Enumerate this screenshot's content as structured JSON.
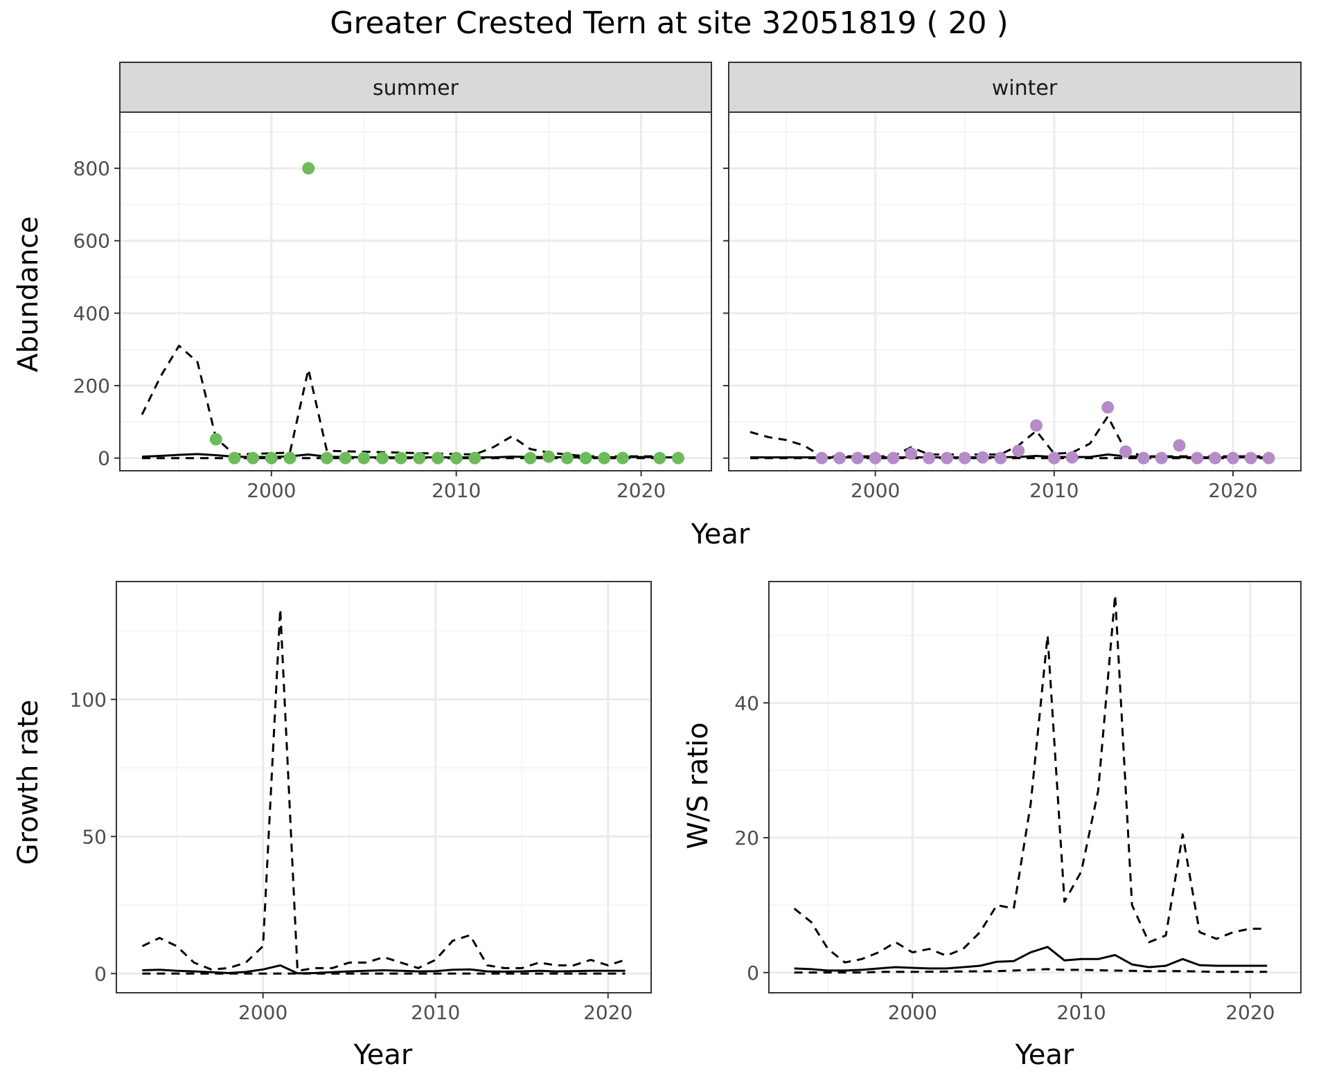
{
  "title": "Greater Crested Tern at site 32051819 ( 20 )",
  "colors": {
    "summer_points": "#6dbb5a",
    "winter_points": "#b58cc8",
    "line": "#000000",
    "grid": "#ebebeb",
    "strip_bg": "#d9d9d9"
  },
  "chart_data": [
    {
      "type": "scatter",
      "panel": "summer",
      "strip_label": "summer",
      "xlabel": "Year",
      "ylabel": "Abundance",
      "xlim": [
        1991.8,
        2023.8
      ],
      "ylim": [
        -35,
        955
      ],
      "x_ticks": [
        2000,
        2010,
        2020
      ],
      "y_ticks": [
        0,
        200,
        400,
        600,
        800
      ],
      "point_color": "#6dbb5a",
      "points": {
        "x": [
          1997,
          1998,
          1999,
          2000,
          2001,
          2002,
          2003,
          2004,
          2005,
          2006,
          2007,
          2008,
          2009,
          2010,
          2011,
          2014,
          2015,
          2016,
          2017,
          2018,
          2019,
          2021,
          2022
        ],
        "y": [
          52,
          0,
          0,
          0,
          0,
          800,
          0,
          0,
          0,
          0,
          0,
          0,
          0,
          0,
          0,
          0,
          4,
          0,
          0,
          0,
          0,
          0,
          0
        ]
      },
      "series": [
        {
          "style": "solid",
          "x": [
            1993,
            1994,
            1995,
            1996,
            1997,
            1998,
            1999,
            2000,
            2001,
            2002,
            2003,
            2004,
            2005,
            2006,
            2007,
            2008,
            2009,
            2010,
            2011,
            2012,
            2013,
            2014,
            2015,
            2016,
            2017,
            2018,
            2019,
            2020,
            2021,
            2022
          ],
          "y": [
            4,
            6,
            9,
            11,
            8,
            4,
            3,
            3,
            5,
            10,
            4,
            3,
            2,
            2,
            2,
            2,
            2,
            2,
            2,
            2,
            4,
            3,
            3,
            2,
            2,
            2,
            3,
            3,
            2,
            2
          ]
        },
        {
          "style": "dashed",
          "x": [
            1993,
            1994,
            1995,
            1996,
            1997,
            1998,
            2001,
            2002,
            2003,
            2011,
            2012,
            2013,
            2014,
            2015,
            2016,
            2017,
            2018,
            2019,
            2020,
            2021
          ],
          "y": [
            120,
            225,
            310,
            265,
            55,
            10,
            15,
            245,
            20,
            10,
            30,
            60,
            25,
            15,
            10,
            5,
            5,
            5,
            5,
            5
          ]
        },
        {
          "style": "dashed",
          "x": [
            1993,
            2000,
            2005,
            2010,
            2015,
            2021
          ],
          "y": [
            0,
            0,
            0,
            0,
            0,
            0
          ]
        }
      ]
    },
    {
      "type": "scatter",
      "panel": "winter",
      "strip_label": "winter",
      "xlabel": "Year",
      "ylabel": "Abundance",
      "xlim": [
        1991.8,
        2023.8
      ],
      "ylim": [
        -35,
        955
      ],
      "x_ticks": [
        2000,
        2010,
        2020
      ],
      "y_ticks": [
        0,
        200,
        400,
        600,
        800
      ],
      "point_color": "#b58cc8",
      "points": {
        "x": [
          1997,
          1998,
          1999,
          2000,
          2001,
          2002,
          2003,
          2004,
          2005,
          2006,
          2007,
          2008,
          2009,
          2010,
          2011,
          2013,
          2014,
          2015,
          2016,
          2017,
          2018,
          2019,
          2020,
          2021,
          2022
        ],
        "y": [
          0,
          0,
          0,
          0,
          0,
          12,
          0,
          0,
          0,
          2,
          0,
          20,
          90,
          0,
          2,
          140,
          18,
          0,
          0,
          35,
          0,
          0,
          0,
          0,
          0
        ]
      },
      "series": [
        {
          "style": "solid",
          "x": [
            1993,
            1995,
            2000,
            2005,
            2008,
            2009,
            2010,
            2012,
            2013,
            2014,
            2016,
            2018,
            2020,
            2022
          ],
          "y": [
            2,
            2,
            2,
            2,
            3,
            6,
            3,
            3,
            10,
            5,
            3,
            2,
            2,
            2
          ]
        },
        {
          "style": "dashed",
          "x": [
            1993,
            1994,
            1995,
            1996,
            1997,
            2001,
            2002,
            2003,
            2007,
            2008,
            2009,
            2010,
            2011,
            2012,
            2013,
            2014,
            2015,
            2016,
            2017,
            2018,
            2019,
            2020,
            2021,
            2022
          ],
          "y": [
            72,
            58,
            50,
            35,
            5,
            5,
            30,
            10,
            10,
            35,
            75,
            12,
            15,
            40,
            115,
            20,
            5,
            5,
            5,
            5,
            5,
            5,
            5,
            5
          ]
        },
        {
          "style": "dashed",
          "x": [
            1993,
            2000,
            2005,
            2010,
            2015,
            2022
          ],
          "y": [
            0,
            0,
            0,
            0,
            0,
            0
          ]
        }
      ]
    },
    {
      "type": "line",
      "panel": "growth",
      "xlabel": "Year",
      "ylabel": "Growth rate",
      "xlim": [
        1991.5,
        2022.5
      ],
      "ylim": [
        -7,
        143
      ],
      "x_ticks": [
        2000,
        2010,
        2020
      ],
      "y_ticks": [
        0,
        50,
        100
      ],
      "series": [
        {
          "style": "solid",
          "x": [
            1993,
            1994,
            1995,
            1996,
            1997,
            1998,
            1999,
            2000,
            2001,
            2002,
            2003,
            2004,
            2005,
            2006,
            2007,
            2008,
            2009,
            2010,
            2011,
            2012,
            2013,
            2014,
            2015,
            2016,
            2017,
            2018,
            2019,
            2020,
            2021
          ],
          "y": [
            1.2,
            1.4,
            1.0,
            0.8,
            0.5,
            0.2,
            0.6,
            1.5,
            3.0,
            0.1,
            0.2,
            0.5,
            0.8,
            1.0,
            1.2,
            1.0,
            0.8,
            0.9,
            1.4,
            1.5,
            0.8,
            0.7,
            0.8,
            1.0,
            0.8,
            0.9,
            1.0,
            1.0,
            1.0
          ]
        },
        {
          "style": "dashed",
          "x": [
            1993,
            1994,
            1995,
            1996,
            1997,
            1998,
            1999,
            2000,
            2001,
            2002,
            2003,
            2004,
            2005,
            2006,
            2007,
            2008,
            2009,
            2010,
            2011,
            2012,
            2013,
            2014,
            2015,
            2016,
            2017,
            2018,
            2019,
            2020,
            2021
          ],
          "y": [
            10,
            13,
            10,
            4,
            1.5,
            2,
            4,
            10,
            133,
            1,
            2,
            2,
            4,
            4,
            6,
            4,
            2,
            5,
            12,
            14,
            3,
            2,
            2,
            4,
            3,
            3,
            5,
            3,
            5
          ]
        },
        {
          "style": "dashed",
          "x": [
            1993,
            2000,
            2005,
            2010,
            2015,
            2021
          ],
          "y": [
            0,
            0,
            0,
            0,
            0,
            0
          ]
        }
      ]
    },
    {
      "type": "line",
      "panel": "ws_ratio",
      "xlabel": "Year",
      "ylabel": "W/S ratio",
      "xlim": [
        1991.5,
        2023.0
      ],
      "ylim": [
        -3,
        58
      ],
      "x_ticks": [
        2000,
        2010,
        2020
      ],
      "y_ticks": [
        0,
        20,
        40
      ],
      "series": [
        {
          "style": "solid",
          "x": [
            1993,
            1994,
            1995,
            1996,
            1997,
            1998,
            1999,
            2000,
            2001,
            2002,
            2003,
            2004,
            2005,
            2006,
            2007,
            2008,
            2009,
            2010,
            2011,
            2012,
            2013,
            2014,
            2015,
            2016,
            2017,
            2018,
            2019,
            2020,
            2021
          ],
          "y": [
            0.6,
            0.5,
            0.3,
            0.3,
            0.4,
            0.6,
            0.8,
            0.7,
            0.6,
            0.6,
            0.8,
            1.0,
            1.6,
            1.7,
            3.0,
            3.8,
            1.8,
            2.0,
            2.0,
            2.6,
            1.2,
            0.8,
            1.0,
            2.0,
            1.1,
            1.0,
            1.0,
            1.0,
            1.0
          ]
        },
        {
          "style": "dashed",
          "x": [
            1993,
            1994,
            1995,
            1996,
            1997,
            1998,
            1999,
            2000,
            2001,
            2002,
            2003,
            2004,
            2005,
            2006,
            2007,
            2008,
            2009,
            2010,
            2011,
            2012,
            2013,
            2014,
            2015,
            2016,
            2017,
            2018,
            2019,
            2020,
            2021
          ],
          "y": [
            9.5,
            7.5,
            3.5,
            1.5,
            2.0,
            3.0,
            4.5,
            3.0,
            3.5,
            2.5,
            3.5,
            6.0,
            10.0,
            9.5,
            25.0,
            50.0,
            10.5,
            15.0,
            27.0,
            56.0,
            10.0,
            4.5,
            5.5,
            20.5,
            6.0,
            5.0,
            6.0,
            6.5,
            6.5
          ]
        },
        {
          "style": "dashed",
          "x": [
            1993,
            1994,
            1995,
            1996,
            1997,
            1998,
            1999,
            2000,
            2005,
            2006,
            2007,
            2008,
            2009,
            2010,
            2012,
            2014,
            2016,
            2018,
            2021
          ],
          "y": [
            0,
            0,
            0,
            0,
            0,
            0.1,
            0.1,
            0.1,
            0.2,
            0.3,
            0.4,
            0.5,
            0.4,
            0.4,
            0.3,
            0.2,
            0.2,
            0.1,
            0.1
          ]
        }
      ]
    }
  ]
}
